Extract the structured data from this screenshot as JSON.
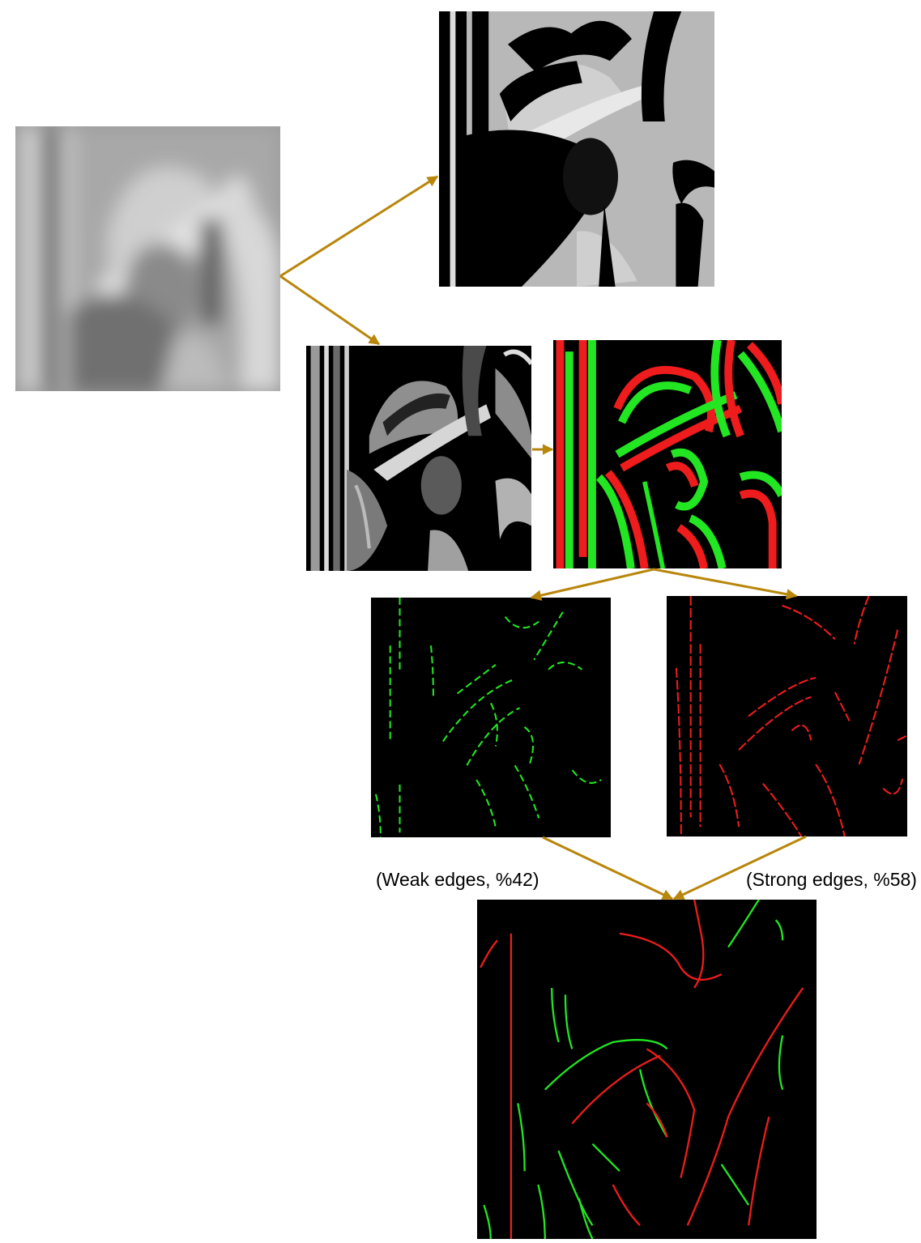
{
  "captions": {
    "weak": "(Weak edges, %42)",
    "strong": "(Strong edges, %58)"
  },
  "colors": {
    "arrow": "#b8860b",
    "weak_edge": "#22e622",
    "strong_edge": "#ee1c1c",
    "background": "#000000"
  }
}
